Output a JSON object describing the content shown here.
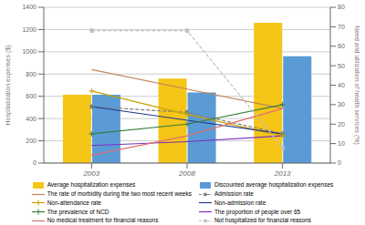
{
  "chart_data": {
    "type": "bar",
    "categories": [
      "2003",
      "2008",
      "2013"
    ],
    "ylabel": "Hospitalization expenses ($)",
    "y2label": "Need and utilization of health services (%)",
    "ylim": [
      0,
      1400
    ],
    "yticks": [
      0,
      200,
      400,
      600,
      800,
      1000,
      1200,
      1400
    ],
    "y2lim": [
      0,
      80
    ],
    "y2ticks": [
      0,
      10,
      20,
      30,
      40,
      50,
      60,
      70,
      80
    ],
    "grid": true,
    "legend": "bottom",
    "series": [
      {
        "name": "Average hospitalization expenses",
        "type": "bar",
        "color": "#F5C518",
        "values": [
          615,
          760,
          1260
        ]
      },
      {
        "name": "Discounted average hospitalization expenses",
        "type": "bar",
        "color": "#5B9BD5",
        "values": [
          615,
          635,
          960
        ]
      },
      {
        "name": "The rate of morbidity during the two most recent weeks",
        "type": "line",
        "axis": "y2",
        "color": "#C0855A",
        "line_style": "solid",
        "values": [
          48,
          38,
          28
        ]
      },
      {
        "name": "Admission rate",
        "type": "line",
        "axis": "y2",
        "color": "#808080",
        "line_style": "dashed",
        "marker": "circle",
        "values": [
          29,
          26,
          15
        ]
      },
      {
        "name": "Non-attendance rate",
        "type": "line",
        "axis": "y2",
        "color": "#C8A000",
        "line_style": "solid",
        "marker": "plus",
        "values": [
          37,
          25,
          14
        ]
      },
      {
        "name": "Non-admission rate",
        "type": "line",
        "axis": "y2",
        "color": "#1F3A8A",
        "line_style": "solid",
        "values": [
          29,
          22,
          15
        ]
      },
      {
        "name": "The prevalence of NCD",
        "type": "line",
        "axis": "y2",
        "color": "#3A7D3A",
        "line_style": "solid",
        "marker": "plus",
        "values": [
          15,
          20,
          30
        ]
      },
      {
        "name": "The proportion of people over 65",
        "type": "line",
        "axis": "y2",
        "color": "#7B2FBE",
        "line_style": "solid",
        "values": [
          9,
          11,
          14
        ]
      },
      {
        "name": "No medical treatment for financial reasons",
        "type": "line",
        "axis": "y2",
        "color": "#E07070",
        "line_style": "solid",
        "values": [
          4,
          14,
          28
        ]
      },
      {
        "name": "Not hospitalized for financial reasons",
        "type": "line",
        "axis": "y2",
        "color": "#C0C0C0",
        "line_style": "dashed",
        "marker": "circle",
        "values": [
          68,
          68,
          8
        ]
      }
    ]
  }
}
